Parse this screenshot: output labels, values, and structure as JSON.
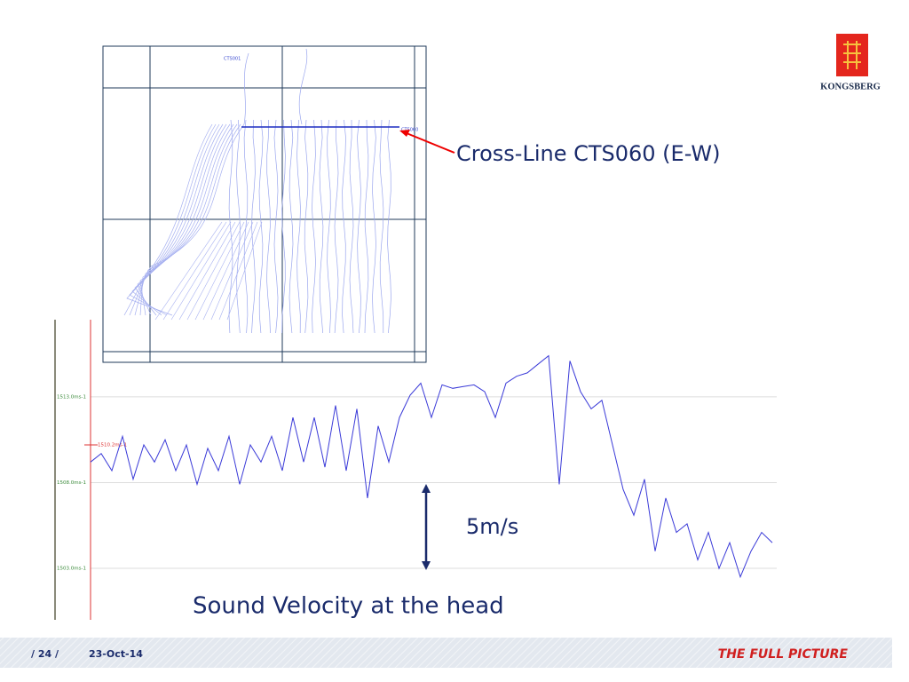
{
  "annotation": "Cross-Line CTS060 (E-W)",
  "scale_label": "5m/s",
  "caption": "Sound Velocity at the head",
  "map": {
    "labels": [
      "CTS001",
      "CTS060"
    ]
  },
  "footer": {
    "page": "/ 24 /",
    "date": "23-Oct-14",
    "slogan": "THE FULL PICTURE"
  },
  "logo": {
    "text": "KONGSBERG"
  },
  "chart_data": {
    "type": "line",
    "color": "#3a3ad8",
    "ylim": [
      1500,
      1517.5
    ],
    "yticks": [
      {
        "value": 1503,
        "label": "1503.0ms-1"
      },
      {
        "value": 1508,
        "label": "1508.0ms-1"
      },
      {
        "value": 1513,
        "label": "1513.0ms-1"
      }
    ],
    "reference": {
      "value": 1510.2,
      "label": "1510.2ms-1"
    },
    "grid": true,
    "values": [
      1509.2,
      1509.7,
      1508.7,
      1510.7,
      1508.2,
      1510.2,
      1509.2,
      1510.5,
      1508.7,
      1510.2,
      1507.9,
      1510.0,
      1508.7,
      1510.7,
      1507.9,
      1510.2,
      1509.2,
      1510.7,
      1508.7,
      1511.8,
      1509.2,
      1511.8,
      1508.9,
      1512.5,
      1508.7,
      1512.3,
      1507.1,
      1511.3,
      1509.2,
      1511.8,
      1513.1,
      1513.8,
      1511.8,
      1513.7,
      1513.5,
      1513.6,
      1513.7,
      1513.3,
      1511.8,
      1513.8,
      1514.2,
      1514.4,
      1514.9,
      1515.4,
      1507.9,
      1515.1,
      1513.3,
      1512.3,
      1512.8,
      1510.2,
      1507.6,
      1506.1,
      1508.2,
      1504.0,
      1507.1,
      1505.1,
      1505.6,
      1503.5,
      1505.1,
      1503.0,
      1504.5,
      1502.5,
      1504.0,
      1505.1,
      1504.5
    ]
  }
}
